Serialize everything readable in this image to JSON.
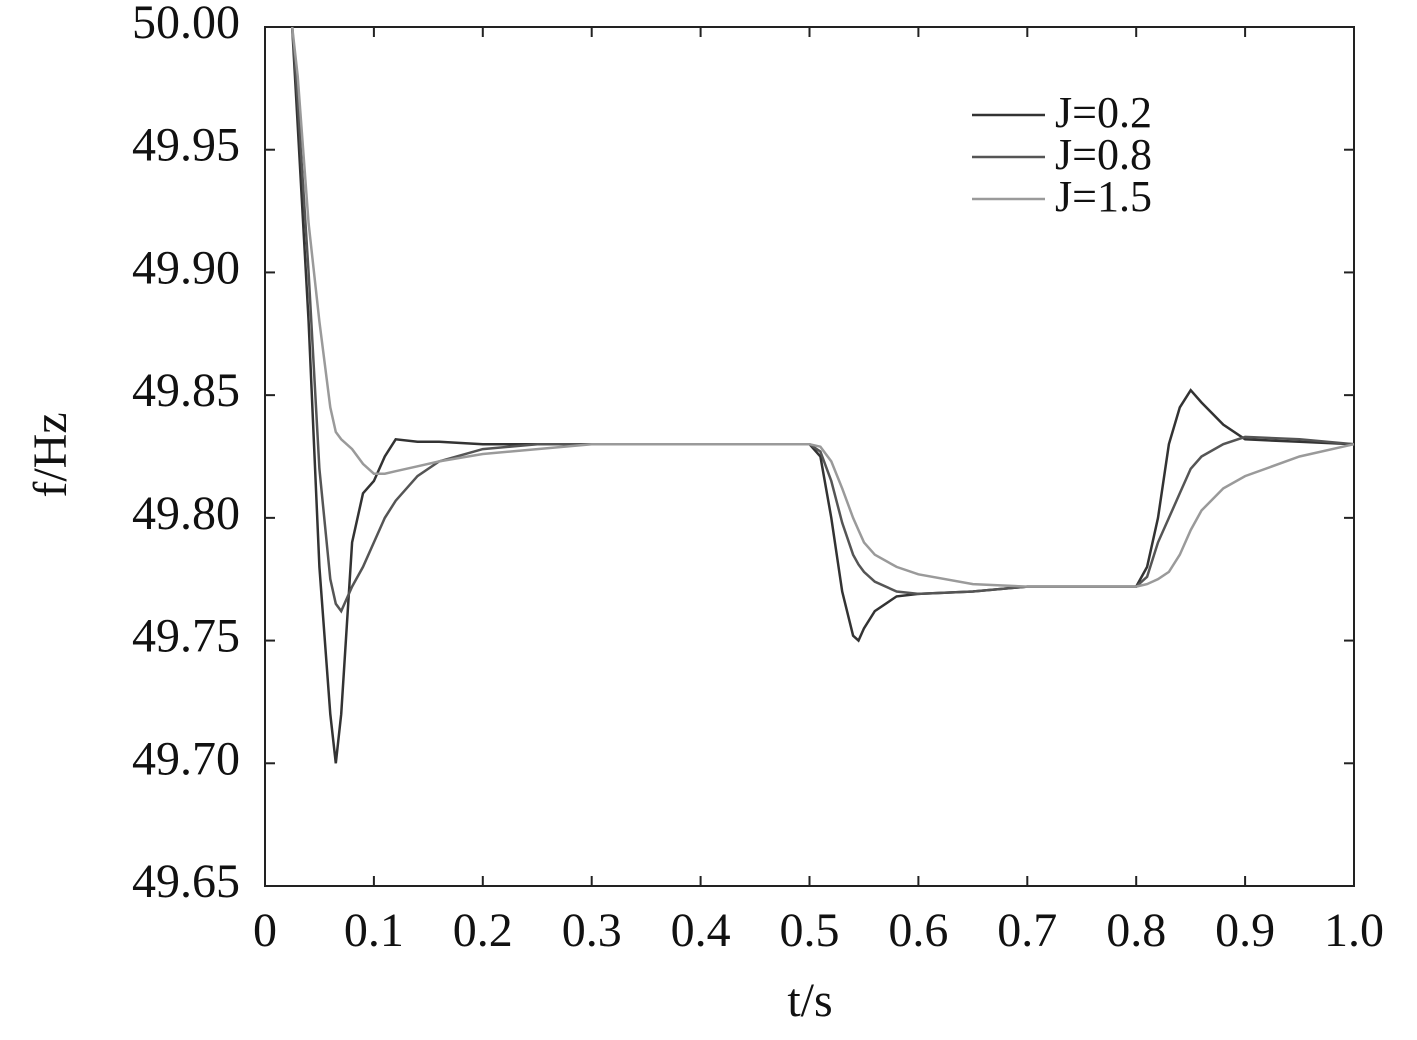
{
  "chart_data": {
    "type": "line",
    "xlabel": "t/s",
    "ylabel": "f/Hz",
    "x": [
      0.025,
      0.03,
      0.04,
      0.05,
      0.06,
      0.065,
      0.07,
      0.08,
      0.09,
      0.1,
      0.11,
      0.12,
      0.14,
      0.16,
      0.2,
      0.25,
      0.3,
      0.4,
      0.5,
      0.51,
      0.52,
      0.53,
      0.54,
      0.545,
      0.55,
      0.56,
      0.58,
      0.6,
      0.65,
      0.7,
      0.8,
      0.81,
      0.82,
      0.83,
      0.84,
      0.85,
      0.86,
      0.88,
      0.9,
      0.95,
      1.0
    ],
    "series": [
      {
        "name": "J=0.2",
        "color": "#333333",
        "values": [
          50.0,
          49.96,
          49.88,
          49.78,
          49.72,
          49.7,
          49.72,
          49.79,
          49.81,
          49.815,
          49.825,
          49.832,
          49.831,
          49.831,
          49.83,
          49.83,
          49.83,
          49.83,
          49.83,
          49.825,
          49.8,
          49.77,
          49.752,
          49.75,
          49.755,
          49.762,
          49.768,
          49.769,
          49.77,
          49.772,
          49.772,
          49.78,
          49.8,
          49.83,
          49.845,
          49.852,
          49.847,
          49.838,
          49.832,
          49.831,
          49.83
        ]
      },
      {
        "name": "J=0.8",
        "color": "#555555",
        "values": [
          50.0,
          49.97,
          49.9,
          49.82,
          49.775,
          49.765,
          49.762,
          49.772,
          49.78,
          49.79,
          49.8,
          49.807,
          49.817,
          49.823,
          49.828,
          49.83,
          49.83,
          49.83,
          49.83,
          49.827,
          49.815,
          49.798,
          49.785,
          49.781,
          49.778,
          49.774,
          49.77,
          49.769,
          49.77,
          49.772,
          49.772,
          49.776,
          49.79,
          49.8,
          49.81,
          49.82,
          49.825,
          49.83,
          49.833,
          49.832,
          49.83
        ]
      },
      {
        "name": "J=1.5",
        "color": "#9a9a9a",
        "values": [
          50.0,
          49.98,
          49.92,
          49.88,
          49.845,
          49.835,
          49.832,
          49.828,
          49.822,
          49.818,
          49.818,
          49.819,
          49.821,
          49.823,
          49.826,
          49.828,
          49.83,
          49.83,
          49.83,
          49.829,
          49.823,
          49.812,
          49.8,
          49.795,
          49.79,
          49.785,
          49.78,
          49.777,
          49.773,
          49.772,
          49.772,
          49.773,
          49.775,
          49.778,
          49.785,
          49.795,
          49.803,
          49.812,
          49.817,
          49.825,
          49.83
        ]
      }
    ],
    "xlim": [
      0,
      1
    ],
    "xticks": [
      0,
      0.1,
      0.2,
      0.3,
      0.4,
      0.5,
      0.6,
      0.7,
      0.8,
      0.9,
      {
        "value": 1,
        "label": "1.0"
      }
    ],
    "ylim": [
      49.65,
      50
    ],
    "yticks": [
      49.65,
      {
        "value": 49.7,
        "label": "49.70"
      },
      49.75,
      {
        "value": 49.8,
        "label": "49.80"
      },
      49.85,
      {
        "value": 49.9,
        "label": "49.90"
      },
      49.95,
      {
        "value": 50,
        "label": "50.00"
      }
    ],
    "legend": "upper right"
  }
}
